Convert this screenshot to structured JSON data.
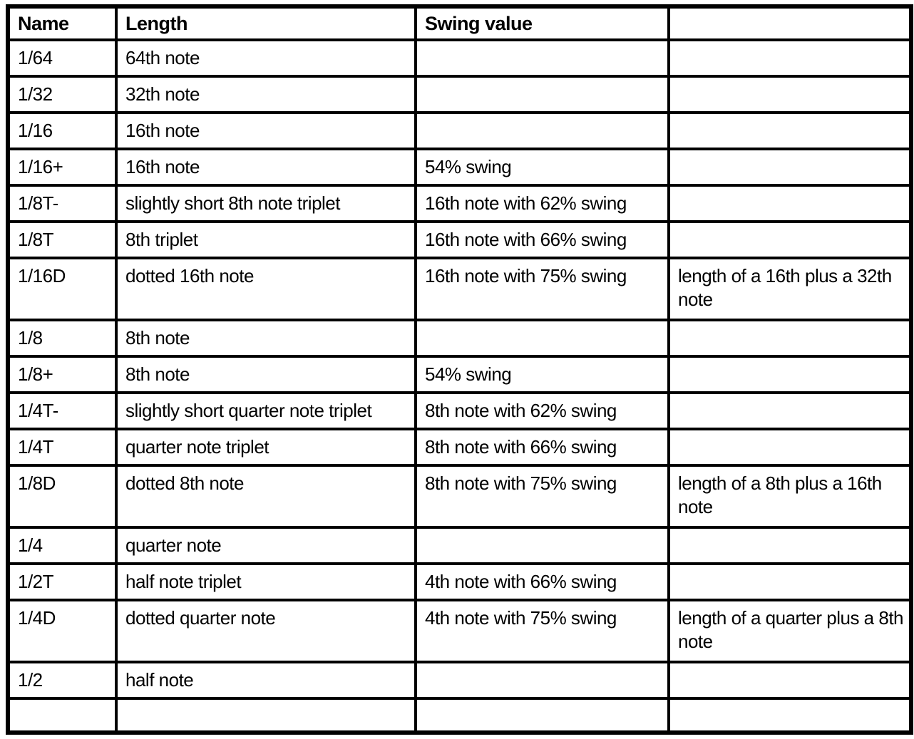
{
  "table": {
    "headers": [
      "Name",
      "Length",
      "Swing value",
      ""
    ],
    "rows": [
      [
        "1/64",
        "64th note",
        "",
        ""
      ],
      [
        "1/32",
        "32th note",
        "",
        ""
      ],
      [
        "1/16",
        "16th note",
        "",
        ""
      ],
      [
        "1/16+",
        "16th note",
        "54% swing",
        ""
      ],
      [
        "1/8T-",
        "slightly short 8th note triplet",
        "16th note with 62% swing",
        ""
      ],
      [
        "1/8T",
        "8th triplet",
        "16th note with 66% swing",
        ""
      ],
      [
        "1/16D",
        "dotted 16th note",
        "16th note with 75% swing",
        "length of a 16th plus a 32th note"
      ],
      [
        "1/8",
        "8th note",
        "",
        ""
      ],
      [
        "1/8+",
        "8th note",
        "54% swing",
        ""
      ],
      [
        "1/4T-",
        "slightly short quarter note triplet",
        "8th note with 62% swing",
        ""
      ],
      [
        "1/4T",
        "quarter note triplet",
        "8th note with 66% swing",
        ""
      ],
      [
        "1/8D",
        "dotted 8th note",
        "8th note with 75% swing",
        "length of a 8th plus a 16th note"
      ],
      [
        "1/4",
        "quarter note",
        "",
        ""
      ],
      [
        "1/2T",
        "half note triplet",
        "4th note with 66% swing",
        ""
      ],
      [
        "1/4D",
        "dotted quarter note",
        "4th note with 75% swing",
        "length of a quarter plus a 8th note"
      ],
      [
        "1/2",
        "half note",
        "",
        ""
      ],
      [
        "",
        "",
        "",
        ""
      ]
    ]
  },
  "colors": {
    "border": "#000000",
    "background": "#ffffff",
    "text": "#000000"
  }
}
